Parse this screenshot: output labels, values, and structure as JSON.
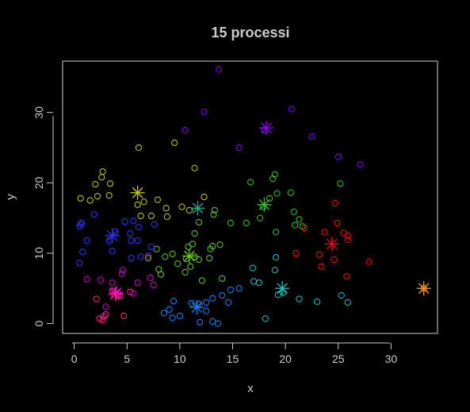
{
  "chart_data": {
    "type": "scatter",
    "title": "15 processi",
    "xlabel": "x",
    "ylabel": "y",
    "xlim": [
      -1.1,
      34.4
    ],
    "ylim": [
      -1.4,
      37.3
    ],
    "xticks": [
      0,
      5,
      10,
      15,
      20,
      25,
      30
    ],
    "yticks": [
      0,
      10,
      20,
      30
    ],
    "grid": false,
    "legend": "none",
    "background": "#000000",
    "foreground": "#ffffff",
    "series": [
      {
        "color": "#cccc00",
        "centroid": [
          6.0,
          18.6
        ],
        "points": [
          [
            0.6,
            17.8
          ],
          [
            1.5,
            17.5
          ],
          [
            2.0,
            19.8
          ],
          [
            2.6,
            20.8
          ],
          [
            2.2,
            18.1
          ],
          [
            2.7,
            21.6
          ],
          [
            3.4,
            19.9
          ],
          [
            3.3,
            18.2
          ],
          [
            6.1,
            25.0
          ],
          [
            6.0,
            16.9
          ],
          [
            6.3,
            15.3
          ],
          [
            6.6,
            17.3
          ],
          [
            7.3,
            15.3
          ],
          [
            7.9,
            17.6
          ],
          [
            8.8,
            15.2
          ],
          [
            8.7,
            16.4
          ],
          [
            9.5,
            25.7
          ],
          [
            10.2,
            16.6
          ],
          [
            10.9,
            16.1
          ],
          [
            11.4,
            22.1
          ],
          [
            12.3,
            18.0
          ]
        ]
      },
      {
        "color": "#66cc00",
        "centroid": [
          10.9,
          9.6
        ],
        "points": [
          [
            7.0,
            9.3
          ],
          [
            7.8,
            10.6
          ],
          [
            8.0,
            7.7
          ],
          [
            8.2,
            7.0
          ],
          [
            8.6,
            9.5
          ],
          [
            9.3,
            9.9
          ],
          [
            9.8,
            8.5
          ],
          [
            10.5,
            7.3
          ],
          [
            10.6,
            9.2
          ],
          [
            10.8,
            10.9
          ],
          [
            11.0,
            8.1
          ],
          [
            11.2,
            11.3
          ],
          [
            11.4,
            12.8
          ],
          [
            11.4,
            9.5
          ],
          [
            11.8,
            14.4
          ],
          [
            11.8,
            9.1
          ],
          [
            12.1,
            6.1
          ],
          [
            12.8,
            9.3
          ],
          [
            12.9,
            10.6
          ],
          [
            13.1,
            11.0
          ],
          [
            13.2,
            15.5
          ],
          [
            13.3,
            16.1
          ],
          [
            13.8,
            11.2
          ],
          [
            14.0,
            6.4
          ]
        ]
      },
      {
        "color": "#22cc22",
        "centroid": [
          18.0,
          16.9
        ],
        "points": [
          [
            14.8,
            14.3
          ],
          [
            16.3,
            14.3
          ],
          [
            16.7,
            20.1
          ],
          [
            17.6,
            15.0
          ],
          [
            17.9,
            16.6
          ],
          [
            18.5,
            17.8
          ],
          [
            18.8,
            20.6
          ],
          [
            19.0,
            21.2
          ],
          [
            19.2,
            18.5
          ],
          [
            19.1,
            13.0
          ],
          [
            20.5,
            18.6
          ],
          [
            20.8,
            15.9
          ],
          [
            20.9,
            14.0
          ],
          [
            21.3,
            14.8
          ],
          [
            21.6,
            13.8
          ],
          [
            25.2,
            19.9
          ]
        ]
      },
      {
        "color": "#00bb88",
        "centroid": [
          11.7,
          16.4
        ],
        "points": []
      },
      {
        "color": "#00cccc",
        "centroid": [
          19.7,
          5.0
        ],
        "points": [
          [
            16.9,
            7.9
          ],
          [
            17.0,
            6.0
          ],
          [
            17.5,
            5.8
          ],
          [
            18.1,
            0.7
          ],
          [
            19.1,
            9.4
          ],
          [
            19.0,
            7.6
          ],
          [
            19.3,
            4.1
          ],
          [
            19.8,
            4.4
          ],
          [
            21.3,
            3.5
          ],
          [
            23.0,
            3.1
          ],
          [
            25.3,
            4.0
          ],
          [
            25.9,
            3.0
          ]
        ]
      },
      {
        "color": "#0088ff",
        "centroid": [
          11.6,
          2.3
        ],
        "points": [
          [
            8.5,
            1.5
          ],
          [
            9.0,
            2.0
          ],
          [
            9.4,
            3.2
          ],
          [
            9.3,
            0.8
          ],
          [
            10.0,
            1.1
          ],
          [
            11.1,
            2.9
          ],
          [
            11.8,
            2.8
          ],
          [
            11.9,
            0.2
          ],
          [
            12.5,
            1.8
          ],
          [
            12.5,
            3.0
          ],
          [
            13.1,
            0.3
          ],
          [
            13.1,
            3.6
          ],
          [
            13.6,
            0.0
          ],
          [
            14.0,
            4.0
          ],
          [
            14.8,
            4.8
          ],
          [
            15.6,
            5.0
          ],
          [
            14.6,
            3.0
          ]
        ]
      },
      {
        "color": "#3333ff",
        "centroid": [
          3.6,
          12.5
        ],
        "points": [
          [
            0.5,
            13.8
          ],
          [
            0.6,
            14.1
          ],
          [
            0.7,
            14.3
          ],
          [
            0.5,
            8.6
          ],
          [
            0.8,
            10.2
          ],
          [
            1.2,
            11.8
          ],
          [
            1.9,
            15.5
          ],
          [
            3.3,
            11.8
          ],
          [
            3.6,
            10.3
          ],
          [
            3.9,
            13.1
          ],
          [
            4.8,
            14.5
          ],
          [
            5.3,
            12.8
          ],
          [
            5.4,
            11.8
          ],
          [
            5.4,
            9.3
          ],
          [
            5.6,
            14.6
          ],
          [
            6.0,
            11.8
          ],
          [
            6.1,
            13.7
          ],
          [
            6.3,
            9.5
          ],
          [
            7.3,
            10.9
          ],
          [
            7.6,
            14.1
          ]
        ]
      },
      {
        "color": "#8800ff",
        "centroid": [
          18.2,
          27.8
        ],
        "points": [
          [
            13.7,
            36.1
          ],
          [
            12.3,
            30.1
          ],
          [
            10.5,
            27.5
          ],
          [
            15.6,
            25.0
          ],
          [
            18.0,
            27.5
          ],
          [
            20.6,
            30.5
          ],
          [
            22.5,
            26.6
          ],
          [
            25.0,
            23.7
          ],
          [
            27.1,
            22.6
          ]
        ]
      },
      {
        "color": "#cc00cc",
        "centroid": [
          4.0,
          4.4
        ],
        "points": [
          [
            1.2,
            6.3
          ],
          [
            2.5,
            6.2
          ],
          [
            3.0,
            2.4
          ],
          [
            3.6,
            5.8
          ],
          [
            3.8,
            4.0
          ],
          [
            4.2,
            4.3
          ],
          [
            4.6,
            7.6
          ],
          [
            4.5,
            7.1
          ],
          [
            5.6,
            4.3
          ],
          [
            6.0,
            5.8
          ],
          [
            7.0,
            9.6
          ],
          [
            7.2,
            6.5
          ],
          [
            7.5,
            5.5
          ]
        ]
      },
      {
        "color": "#ff2288",
        "centroid": [
          3.9,
          4.2
        ],
        "points": [
          [
            2.1,
            3.5
          ],
          [
            2.4,
            0.7
          ],
          [
            2.7,
            0.5
          ],
          [
            2.8,
            1.0
          ],
          [
            3.0,
            1.3
          ],
          [
            3.6,
            4.7
          ],
          [
            4.3,
            3.9
          ],
          [
            4.7,
            1.1
          ],
          [
            5.3,
            4.5
          ]
        ]
      },
      {
        "color": "#ff0000",
        "centroid": [
          24.4,
          11.3
        ],
        "points": [
          [
            21.0,
            10.0
          ],
          [
            21.8,
            13.6
          ],
          [
            23.2,
            9.8
          ],
          [
            23.4,
            8.1
          ],
          [
            23.7,
            13.0
          ],
          [
            24.6,
            9.1
          ],
          [
            24.7,
            17.1
          ],
          [
            24.9,
            14.3
          ],
          [
            25.5,
            12.9
          ],
          [
            25.8,
            6.7
          ],
          [
            25.9,
            12.5
          ],
          [
            25.9,
            11.9
          ],
          [
            27.9,
            8.8
          ]
        ]
      },
      {
        "color": "#ff9900",
        "centroid": [
          33.1,
          5.0
        ],
        "points": [
          [
            33.1,
            5.0
          ]
        ]
      }
    ]
  }
}
